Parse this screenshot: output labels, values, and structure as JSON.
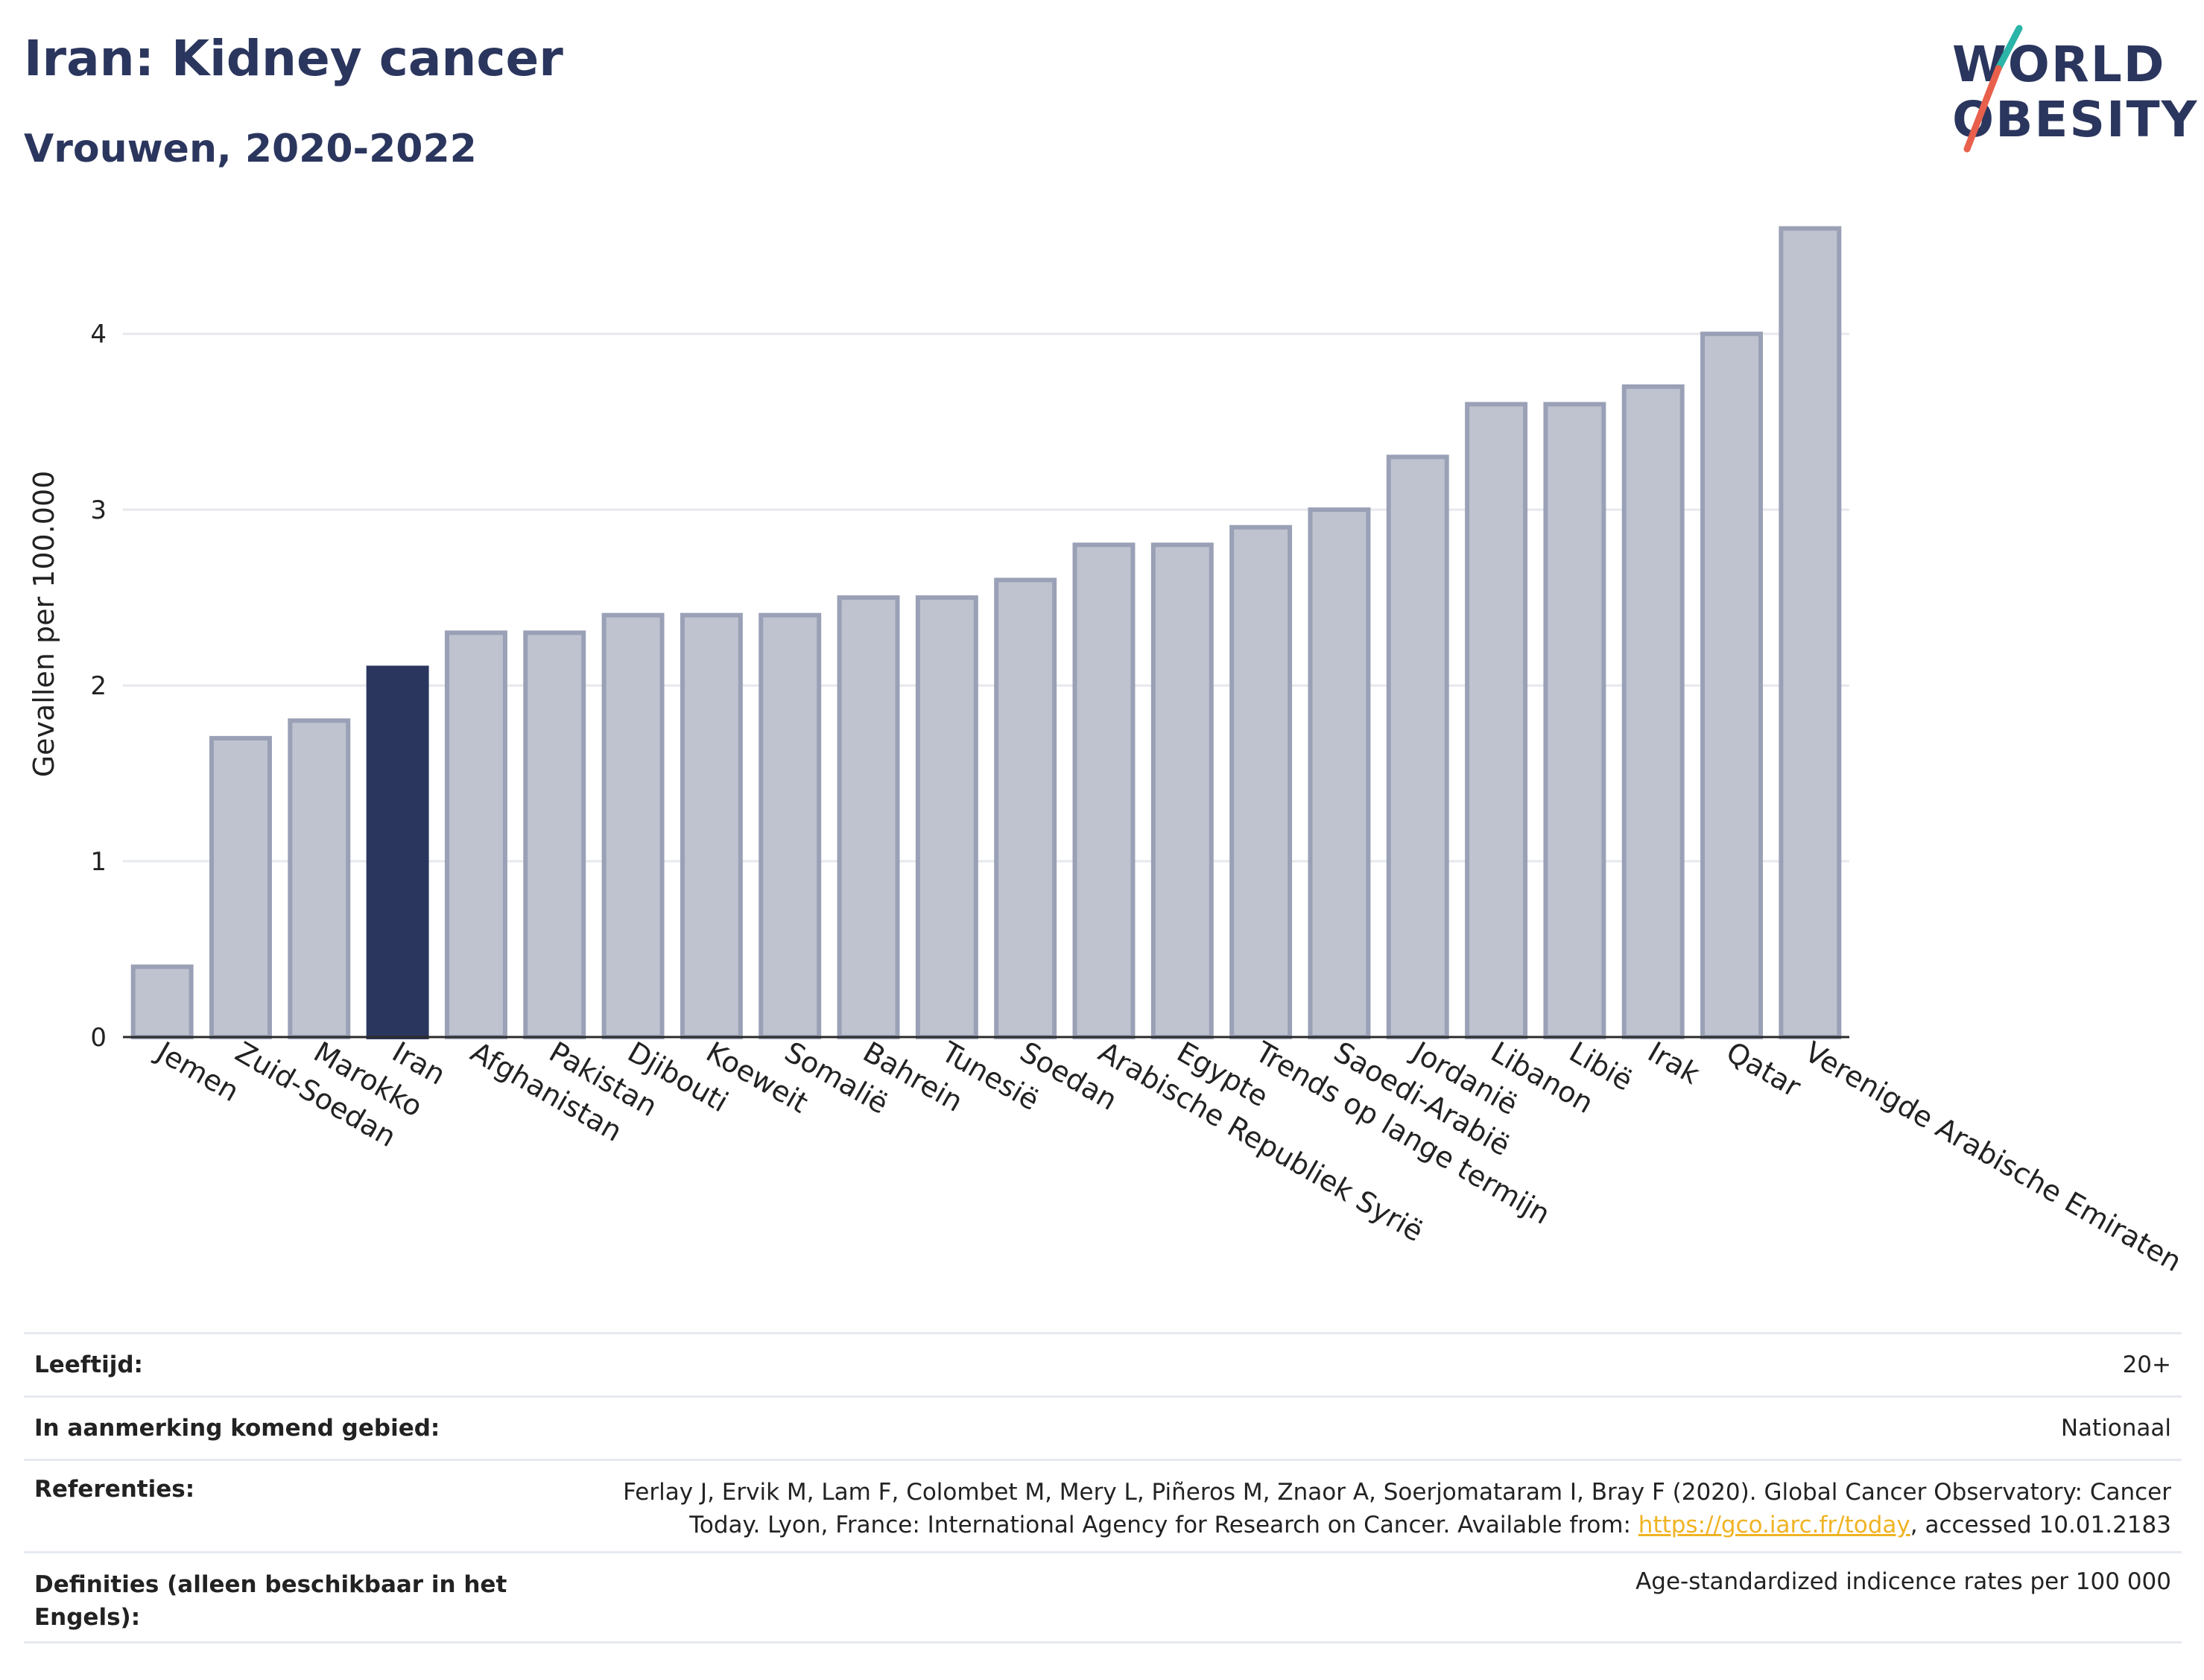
{
  "header": {
    "title": "Iran: Kidney cancer",
    "subtitle": "Vrouwen, 2020-2022"
  },
  "logo": {
    "line1": "WORLD",
    "line2": "OBESITY"
  },
  "chart_data": {
    "type": "bar",
    "categories": [
      "Jemen",
      "Zuid-Soedan",
      "Marokko",
      "Iran",
      "Afghanistan",
      "Pakistan",
      "Djibouti",
      "Koeweit",
      "Somalië",
      "Bahrein",
      "Tunesië",
      "Soedan",
      "Arabische Republiek Syrië",
      "Egypte",
      "Trends op lange termijn",
      "Saoedi-Arabië",
      "Jordanië",
      "Libanon",
      "Libië",
      "Irak",
      "Qatar",
      "Verenigde Arabische Emiraten"
    ],
    "values": [
      0.4,
      1.7,
      1.8,
      2.1,
      2.3,
      2.3,
      2.4,
      2.4,
      2.4,
      2.5,
      2.5,
      2.6,
      2.8,
      2.8,
      2.9,
      3.0,
      3.3,
      3.6,
      3.6,
      3.7,
      4.0,
      4.6
    ],
    "highlight": "Iran",
    "ylabel": "Gevallen per 100.000",
    "yticks": [
      0,
      1,
      2,
      3,
      4
    ],
    "ylim": [
      0,
      4.7
    ],
    "grid": true,
    "colors": {
      "bar": "#bfc3d0",
      "bar_edge": "#9aa1b6",
      "highlight": "#2b365e",
      "axis": "#2b2b2b",
      "grid": "#e6e8ee"
    }
  },
  "footer": {
    "rows": [
      {
        "label": "Leeftijd:",
        "value": "20+"
      },
      {
        "label": "In aanmerking komend gebied:",
        "value": "Nationaal"
      },
      {
        "label": "Referenties:",
        "value_line1": "Ferlay J, Ervik M, Lam F, Colombet M, Mery L, Piñeros M, Znaor A, Soerjomataram I, Bray F (2020). Global Cancer Observatory: Cancer",
        "value_line2_pre": "Today. Lyon, France: International Agency for Research on Cancer. Available from: ",
        "link": "https://gco.iarc.fr/today",
        "value_line2_post": ", accessed 10.01.2183"
      },
      {
        "label_line1": "Definities (alleen beschikbaar in het",
        "label_line2": "Engels):",
        "value": "Age-standardized indicence rates per 100 000"
      }
    ]
  }
}
